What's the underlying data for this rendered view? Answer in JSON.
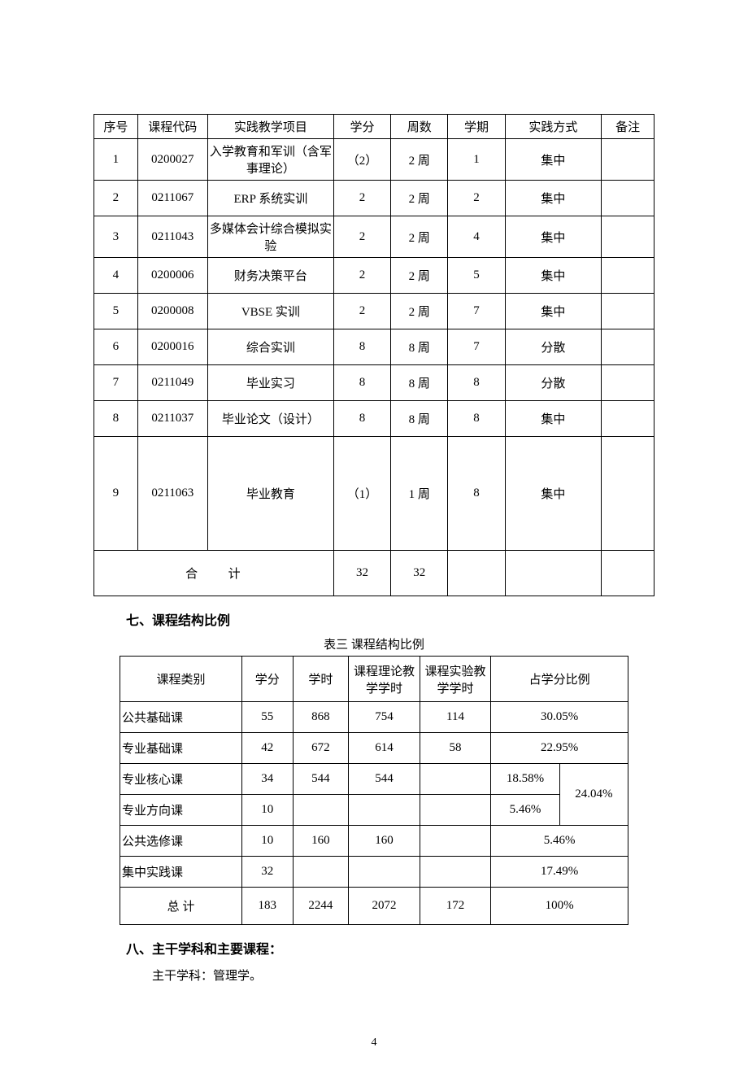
{
  "table1": {
    "headers": [
      "序号",
      "课程代码",
      "实践教学项目",
      "学分",
      "周数",
      "学期",
      "实践方式",
      "备注"
    ],
    "rows": [
      {
        "seq": "1",
        "code": "0200027",
        "name": "入学教育和军训（含军事理论）",
        "credit": "（2）",
        "weeks": "2 周",
        "term": "1",
        "mode": "集中",
        "note": ""
      },
      {
        "seq": "2",
        "code": "0211067",
        "name": "ERP 系统实训",
        "credit": "2",
        "weeks": "2 周",
        "term": "2",
        "mode": "集中",
        "note": ""
      },
      {
        "seq": "3",
        "code": "0211043",
        "name": "多媒体会计综合模拟实验",
        "credit": "2",
        "weeks": "2 周",
        "term": "4",
        "mode": "集中",
        "note": ""
      },
      {
        "seq": "4",
        "code": "0200006",
        "name": "财务决策平台",
        "credit": "2",
        "weeks": "2 周",
        "term": "5",
        "mode": "集中",
        "note": ""
      },
      {
        "seq": "5",
        "code": "0200008",
        "name": "VBSE 实训",
        "credit": "2",
        "weeks": "2 周",
        "term": "7",
        "mode": "集中",
        "note": ""
      },
      {
        "seq": "6",
        "code": "0200016",
        "name": "综合实训",
        "credit": "8",
        "weeks": "8 周",
        "term": "7",
        "mode": "分散",
        "note": ""
      },
      {
        "seq": "7",
        "code": "0211049",
        "name": "毕业实习",
        "credit": "8",
        "weeks": "8 周",
        "term": "8",
        "mode": "分散",
        "note": ""
      },
      {
        "seq": "8",
        "code": "0211037",
        "name": "毕业论文（设计）",
        "credit": "8",
        "weeks": "8 周",
        "term": "8",
        "mode": "集中",
        "note": ""
      },
      {
        "seq": "9",
        "code": "0211063",
        "name": "毕业教育",
        "credit": "（1）",
        "weeks": "1 周",
        "term": "8",
        "mode": "集中",
        "note": "",
        "tall": true
      }
    ],
    "total_label": "合计",
    "total_credit": "32",
    "total_weeks": "32"
  },
  "section7": {
    "heading": "七、课程结构比例",
    "caption": "表三  课程结构比例"
  },
  "table2": {
    "headers": [
      "课程类别",
      "学分",
      "学时",
      "课程理论教学学时",
      "课程实验教学学时",
      "占学分比例"
    ],
    "rows": [
      {
        "cat": "公共基础课",
        "credit": "55",
        "hours": "868",
        "theory": "754",
        "lab": "114",
        "pct": "30.05%"
      },
      {
        "cat": "专业基础课",
        "credit": "42",
        "hours": "672",
        "theory": "614",
        "lab": "58",
        "pct": "22.95%"
      }
    ],
    "merged": {
      "row1": {
        "cat": "专业核心课",
        "credit": "34",
        "hours": "544",
        "theory": "544",
        "lab": "",
        "sub": "18.58%"
      },
      "row2": {
        "cat": "专业方向课",
        "credit": "10",
        "hours": "",
        "theory": "",
        "lab": "",
        "sub": "5.46%"
      },
      "combined": "24.04%"
    },
    "rows2": [
      {
        "cat": "公共选修课",
        "credit": "10",
        "hours": "160",
        "theory": "160",
        "lab": "",
        "pct": "5.46%"
      },
      {
        "cat": "集中实践课",
        "credit": "32",
        "hours": "",
        "theory": "",
        "lab": "",
        "pct": "17.49%"
      }
    ],
    "total": {
      "label": "总  计",
      "credit": "183",
      "hours": "2244",
      "theory": "2072",
      "lab": "172",
      "pct": "100%"
    }
  },
  "section8": {
    "heading": "八、主干学科和主要课程：",
    "body": "主干学科：管理学。"
  },
  "page_number": "4"
}
